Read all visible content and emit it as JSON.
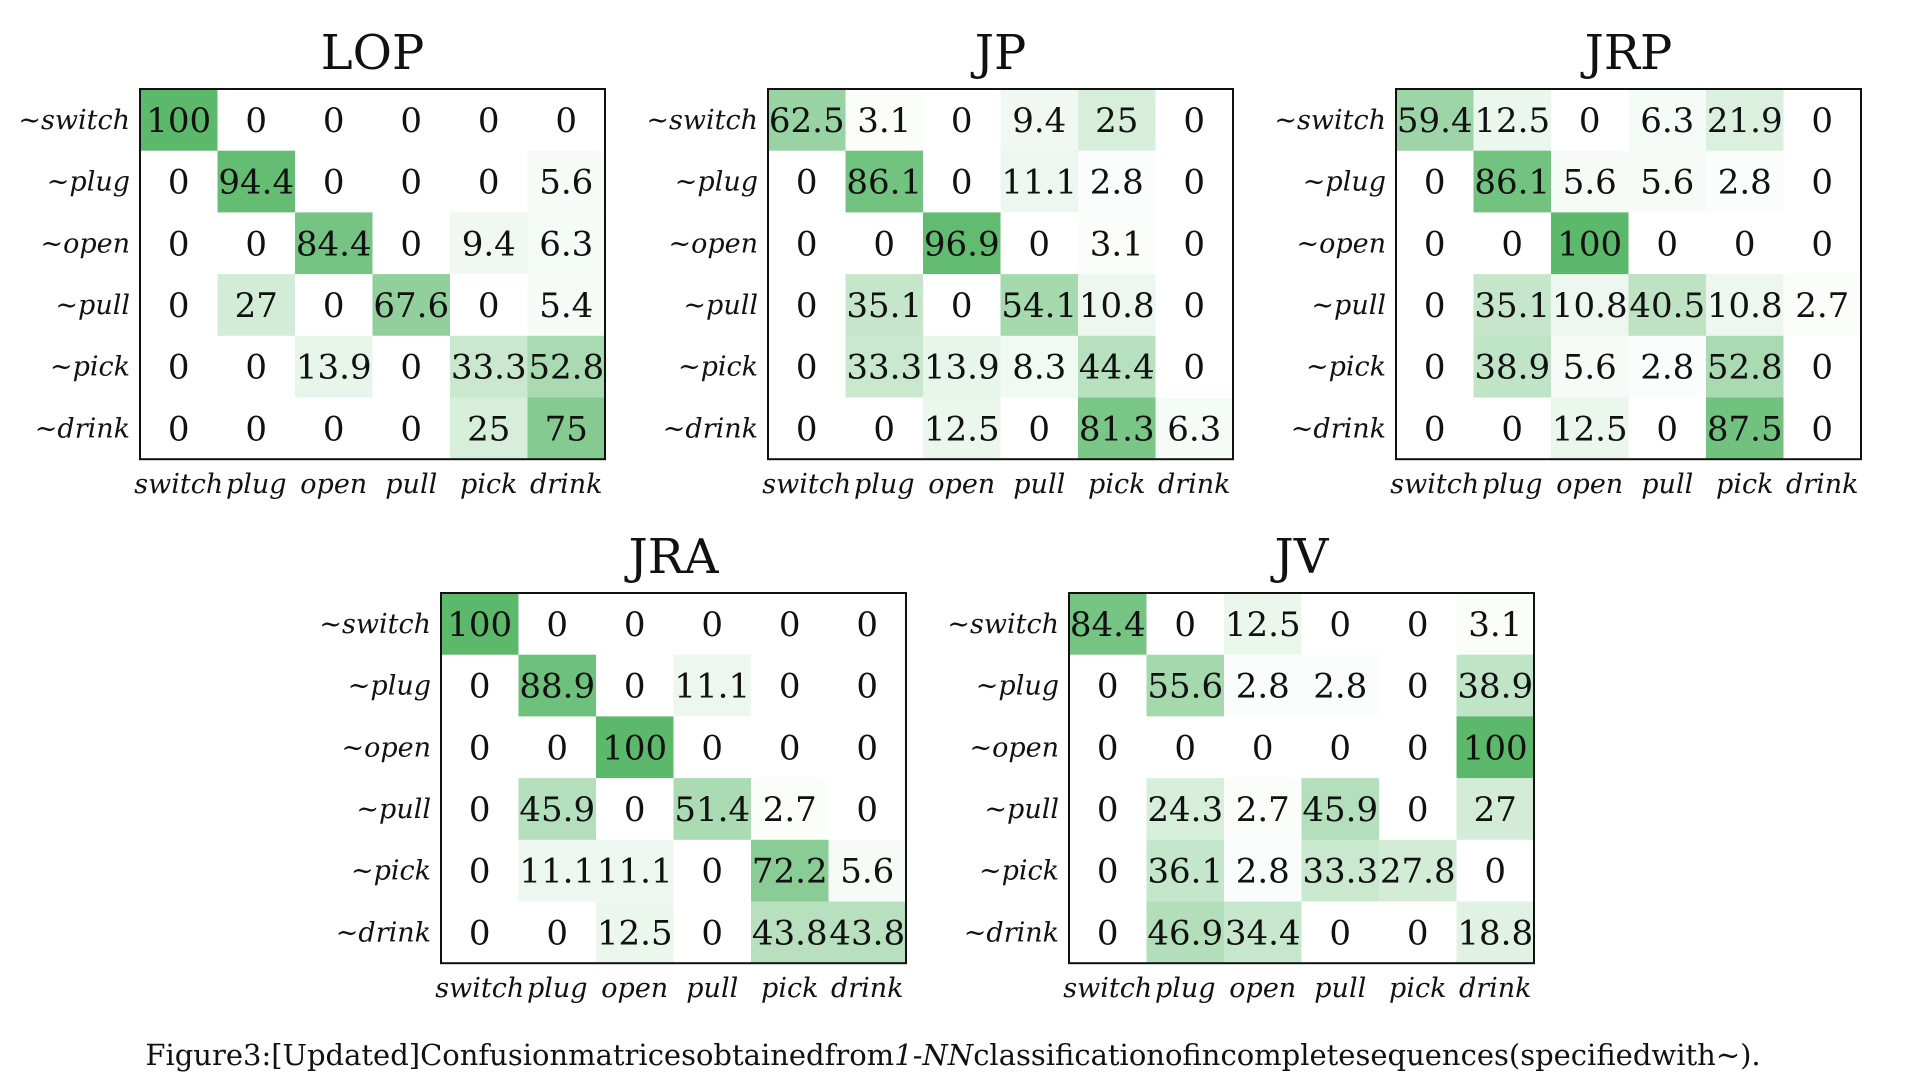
{
  "caption": {
    "prefix": "Figure3:[Updated]Confusionmatricesobtainedfrom",
    "emphasis": "1-NN",
    "suffix": "classificationofincompletesequences(specifiedwith∼)."
  },
  "colors": {
    "cell_max": "#5cb96c",
    "cell_min": "#ffffff",
    "text": "#111111",
    "frame": "#111111"
  },
  "chart_data": [
    {
      "type": "heatmap",
      "title": "LOP",
      "row_labels": [
        "∼switch",
        "∼plug",
        "∼open",
        "∼pull",
        "∼pick",
        "∼drink"
      ],
      "col_labels": [
        "switch",
        "plug",
        "open",
        "pull",
        "pick",
        "drink"
      ],
      "values": [
        [
          100,
          0,
          0,
          0,
          0,
          0
        ],
        [
          0,
          94.4,
          0,
          0,
          0,
          5.6
        ],
        [
          0,
          0,
          84.4,
          0,
          9.4,
          6.3
        ],
        [
          0,
          27,
          0,
          67.6,
          0,
          5.4
        ],
        [
          0,
          0,
          13.9,
          0,
          33.3,
          52.8
        ],
        [
          0,
          0,
          0,
          0,
          25,
          75
        ]
      ]
    },
    {
      "type": "heatmap",
      "title": "JP",
      "row_labels": [
        "∼switch",
        "∼plug",
        "∼open",
        "∼pull",
        "∼pick",
        "∼drink"
      ],
      "col_labels": [
        "switch",
        "plug",
        "open",
        "pull",
        "pick",
        "drink"
      ],
      "values": [
        [
          62.5,
          3.1,
          0,
          9.4,
          25,
          0
        ],
        [
          0,
          86.1,
          0,
          11.1,
          2.8,
          0
        ],
        [
          0,
          0,
          96.9,
          0,
          3.1,
          0
        ],
        [
          0,
          35.1,
          0,
          54.1,
          10.8,
          0
        ],
        [
          0,
          33.3,
          13.9,
          8.3,
          44.4,
          0
        ],
        [
          0,
          0,
          12.5,
          0,
          81.3,
          6.3
        ]
      ]
    },
    {
      "type": "heatmap",
      "title": "JRP",
      "row_labels": [
        "∼switch",
        "∼plug",
        "∼open",
        "∼pull",
        "∼pick",
        "∼drink"
      ],
      "col_labels": [
        "switch",
        "plug",
        "open",
        "pull",
        "pick",
        "drink"
      ],
      "values": [
        [
          59.4,
          12.5,
          0,
          6.3,
          21.9,
          0
        ],
        [
          0,
          86.1,
          5.6,
          5.6,
          2.8,
          0
        ],
        [
          0,
          0,
          100,
          0,
          0,
          0
        ],
        [
          0,
          35.1,
          10.8,
          40.5,
          10.8,
          2.7
        ],
        [
          0,
          38.9,
          5.6,
          2.8,
          52.8,
          0
        ],
        [
          0,
          0,
          12.5,
          0,
          87.5,
          0
        ]
      ]
    },
    {
      "type": "heatmap",
      "title": "JRA",
      "row_labels": [
        "∼switch",
        "∼plug",
        "∼open",
        "∼pull",
        "∼pick",
        "∼drink"
      ],
      "col_labels": [
        "switch",
        "plug",
        "open",
        "pull",
        "pick",
        "drink"
      ],
      "values": [
        [
          100,
          0,
          0,
          0,
          0,
          0
        ],
        [
          0,
          88.9,
          0,
          11.1,
          0,
          0
        ],
        [
          0,
          0,
          100,
          0,
          0,
          0
        ],
        [
          0,
          45.9,
          0,
          51.4,
          2.7,
          0
        ],
        [
          0,
          11.1,
          11.1,
          0,
          72.2,
          5.6
        ],
        [
          0,
          0,
          12.5,
          0,
          43.8,
          43.8
        ]
      ]
    },
    {
      "type": "heatmap",
      "title": "JV",
      "row_labels": [
        "∼switch",
        "∼plug",
        "∼open",
        "∼pull",
        "∼pick",
        "∼drink"
      ],
      "col_labels": [
        "switch",
        "plug",
        "open",
        "pull",
        "pick",
        "drink"
      ],
      "values": [
        [
          84.4,
          0,
          12.5,
          0,
          0,
          3.1
        ],
        [
          0,
          55.6,
          2.8,
          2.8,
          0,
          38.9
        ],
        [
          0,
          0,
          0,
          0,
          0,
          100
        ],
        [
          0,
          24.3,
          2.7,
          45.9,
          0,
          27
        ],
        [
          0,
          36.1,
          2.8,
          33.3,
          27.8,
          0
        ],
        [
          0,
          46.9,
          34.4,
          0,
          0,
          18.8
        ]
      ]
    }
  ]
}
